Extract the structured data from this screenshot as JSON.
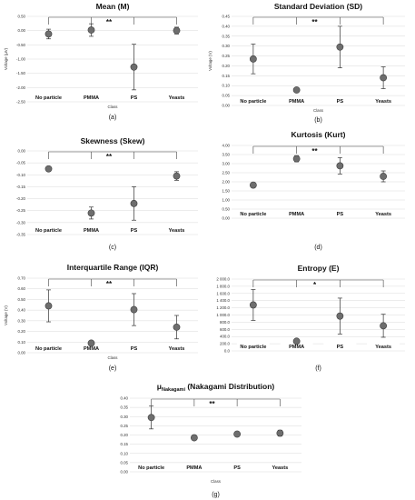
{
  "chart_data": [
    {
      "type": "scatter",
      "title": "Mean (M)",
      "panel": "(a)",
      "ylabel": "Voltage (μV)",
      "xlabel": "Class",
      "significance": "**",
      "categories": [
        "No particle",
        "PMMA",
        "PS",
        "Yeasts"
      ],
      "values": [
        -0.12,
        0.02,
        -1.28,
        0.0
      ],
      "errors": [
        0.17,
        0.22,
        0.8,
        0.12
      ],
      "ylim": [
        -2.5,
        0.5
      ],
      "yticks": [
        "0.50",
        "0.00",
        "-0.50",
        "-1.00",
        "-1.50",
        "-2.00",
        "-2.50"
      ],
      "ytick_values": [
        0.5,
        0.0,
        -0.5,
        -1.0,
        -1.5,
        -2.0,
        -2.5
      ],
      "bracket_from": 0,
      "bracket_to": 3
    },
    {
      "type": "scatter",
      "title": "Standard Deviation (SD)",
      "panel": "(b)",
      "ylabel": "Voltage (V)",
      "xlabel": "Class",
      "significance": "**",
      "categories": [
        "No particle",
        "PMMA",
        "PS",
        "Yeasts"
      ],
      "values": [
        0.235,
        0.078,
        0.295,
        0.14
      ],
      "errors": [
        0.075,
        0.006,
        0.105,
        0.055
      ],
      "ylim": [
        0.0,
        0.45
      ],
      "yticks": [
        "0.45",
        "0.40",
        "0.35",
        "0.30",
        "0.25",
        "0.20",
        "0.15",
        "0.10",
        "0.05",
        "0.00"
      ],
      "ytick_values": [
        0.45,
        0.4,
        0.35,
        0.3,
        0.25,
        0.2,
        0.15,
        0.1,
        0.05,
        0.0
      ],
      "bracket_from": 0,
      "bracket_to": 3
    },
    {
      "type": "scatter",
      "title": "Skewness (Skew)",
      "panel": "(c)",
      "ylabel": "",
      "xlabel": "",
      "significance": "**",
      "categories": [
        "No particle",
        "PMMA",
        "PS",
        "Yeasts"
      ],
      "values": [
        -0.075,
        -0.26,
        -0.22,
        -0.105
      ],
      "errors": [
        0.006,
        0.025,
        0.07,
        0.018
      ],
      "ylim": [
        -0.35,
        0.0
      ],
      "yticks": [
        "0.00",
        "-0.05",
        "-0.10",
        "-0.15",
        "-0.20",
        "-0.25",
        "-0.30",
        "-0.35"
      ],
      "ytick_values": [
        0.0,
        -0.05,
        -0.1,
        -0.15,
        -0.2,
        -0.25,
        -0.3,
        -0.35
      ],
      "bracket_from": 0,
      "bracket_to": 3
    },
    {
      "type": "scatter",
      "title": "Kurtosis (Kurt)",
      "panel": "(d)",
      "ylabel": "",
      "xlabel": "",
      "significance": "**",
      "categories": [
        "No particle",
        "PMMA",
        "PS",
        "Yeasts"
      ],
      "values": [
        1.82,
        3.27,
        2.88,
        2.3
      ],
      "errors": [
        0.08,
        0.17,
        0.45,
        0.3
      ],
      "ylim": [
        0.0,
        4.0
      ],
      "yticks": [
        "4.00",
        "3.50",
        "3.00",
        "2.50",
        "2.00",
        "1.50",
        "1.00",
        "0.50",
        "0.00"
      ],
      "ytick_values": [
        4.0,
        3.5,
        3.0,
        2.5,
        2.0,
        1.5,
        1.0,
        0.5,
        0.0
      ],
      "bracket_from": 0,
      "bracket_to": 3
    },
    {
      "type": "scatter",
      "title": "Interquartile Range (IQR)",
      "panel": "(e)",
      "ylabel": "Voltage (V)",
      "xlabel": "Class",
      "significance": "**",
      "categories": [
        "No particle",
        "PMMA",
        "PS",
        "Yeasts"
      ],
      "values": [
        0.44,
        0.09,
        0.405,
        0.24
      ],
      "errors": [
        0.15,
        0.01,
        0.15,
        0.11
      ],
      "ylim": [
        0.0,
        0.7
      ],
      "yticks": [
        "0.70",
        "0.60",
        "0.50",
        "0.40",
        "0.30",
        "0.20",
        "0.10",
        "0.00"
      ],
      "ytick_values": [
        0.7,
        0.6,
        0.5,
        0.4,
        0.3,
        0.2,
        0.1,
        0.0
      ],
      "bracket_from": 0,
      "bracket_to": 3
    },
    {
      "type": "scatter",
      "title": "Entropy (E)",
      "panel": "(f)",
      "ylabel": "",
      "xlabel": "",
      "significance": "*",
      "categories": [
        "No particle",
        "PMMA",
        "PS",
        "Yeasts"
      ],
      "values": [
        1280,
        270,
        970,
        700
      ],
      "errors": [
        430,
        30,
        500,
        320
      ],
      "ylim": [
        0,
        2000
      ],
      "yticks": [
        "2 000.0",
        "1 800.0",
        "1 600.0",
        "1 400.0",
        "1 200.0",
        "1 000.0",
        "800.0",
        "600.0",
        "400.0",
        "200.0",
        "0.0"
      ],
      "ytick_values": [
        2000,
        1800,
        1600,
        1400,
        1200,
        1000,
        800,
        600,
        400,
        200,
        0
      ],
      "bracket_from": 0,
      "bracket_to": 3
    },
    {
      "type": "scatter",
      "title": "(Nakagami Distribution)",
      "title_mu": "μ",
      "title_sub": "Nakagami",
      "panel": "(g)",
      "ylabel": "",
      "xlabel": "Class",
      "significance": "**",
      "categories": [
        "No particle",
        "PMMA",
        "PS",
        "Yeasts"
      ],
      "values": [
        0.295,
        0.185,
        0.205,
        0.21
      ],
      "errors": [
        0.062,
        0.006,
        0.011,
        0.016
      ],
      "ylim": [
        0.0,
        0.4
      ],
      "yticks": [
        "0.40",
        "0.35",
        "0.30",
        "0.25",
        "0.20",
        "0.15",
        "0.10",
        "0.05",
        "0.00"
      ],
      "ytick_values": [
        0.4,
        0.35,
        0.3,
        0.25,
        0.2,
        0.15,
        0.1,
        0.05,
        0.0
      ],
      "bracket_from": 0,
      "bracket_to": 3
    }
  ]
}
